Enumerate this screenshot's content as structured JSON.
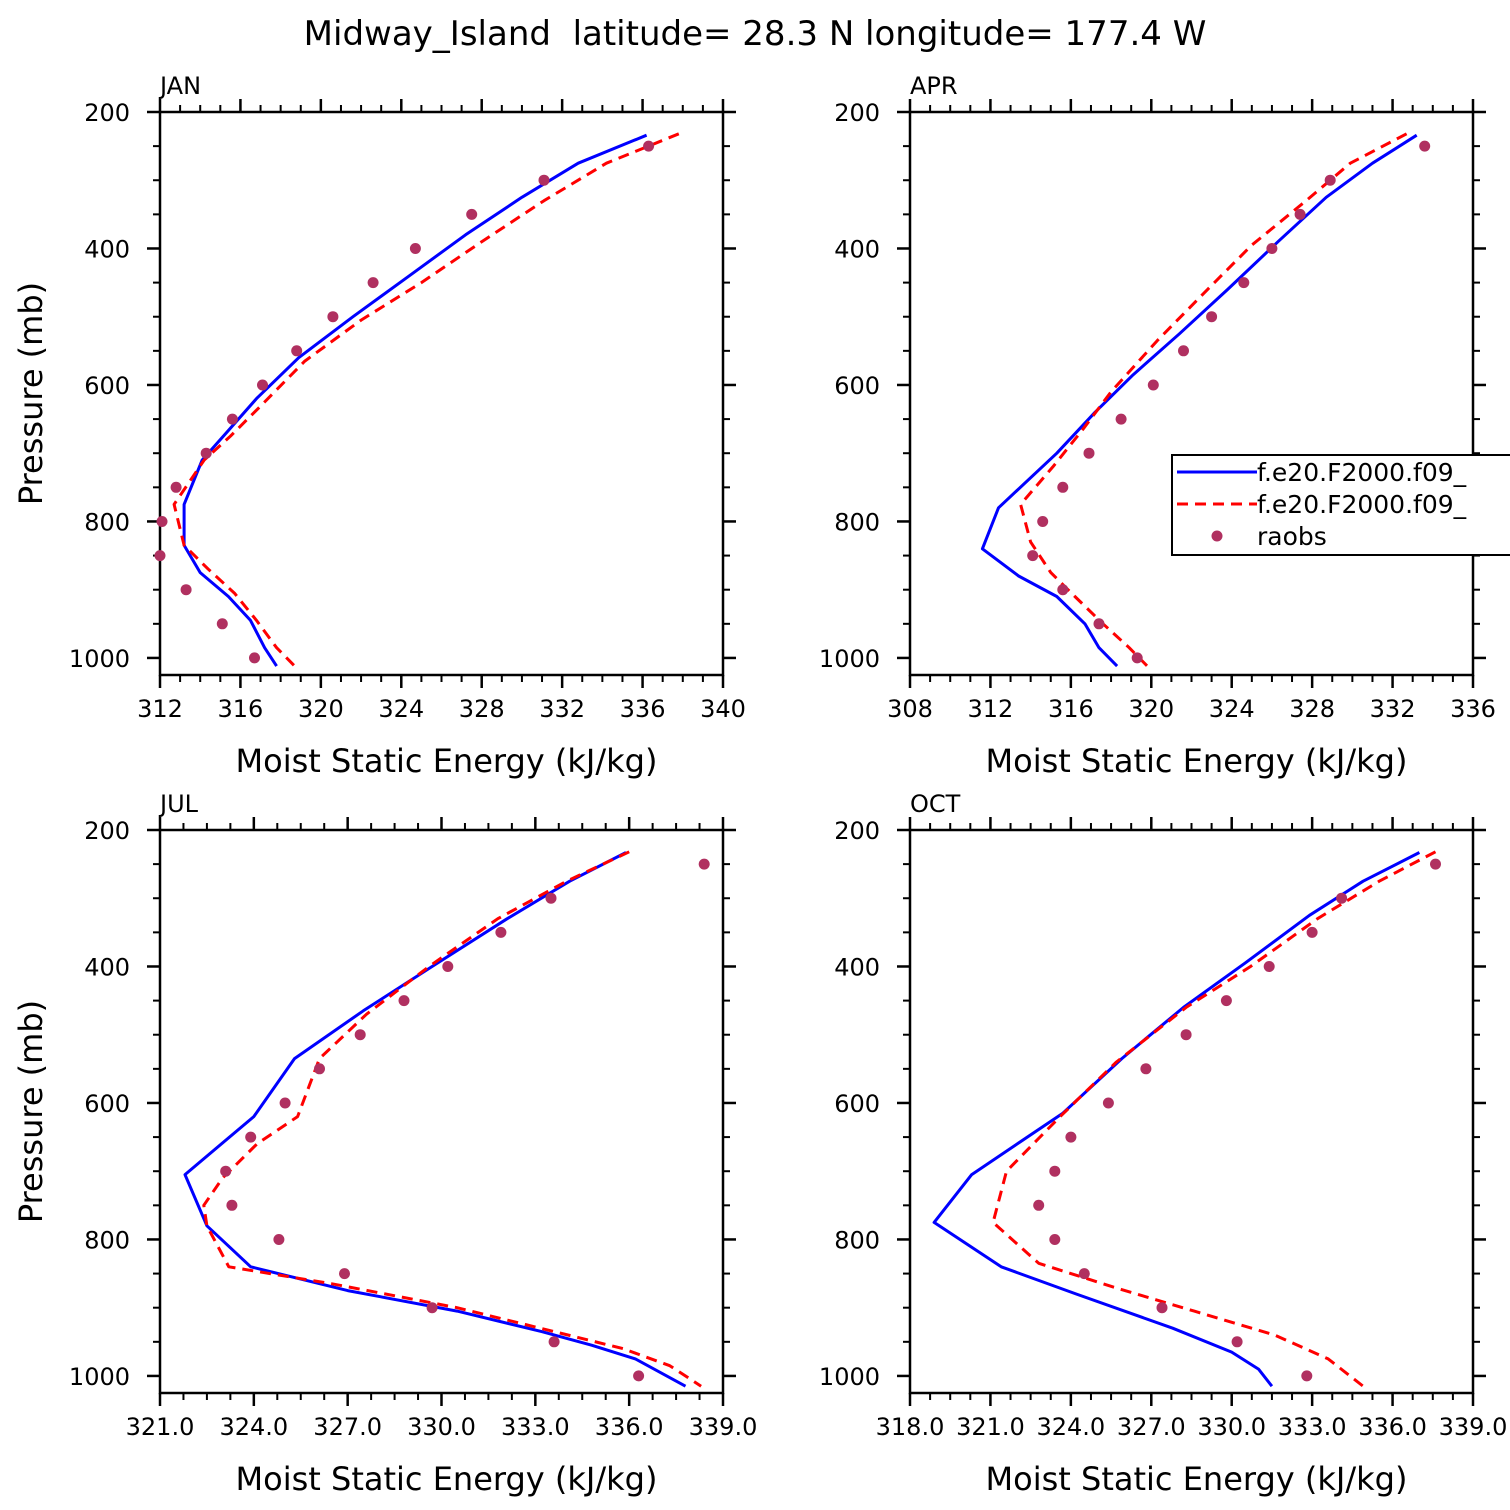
{
  "figure": {
    "title": "Midway_Island  latitude= 28.3 N longitude= 177.4 W"
  },
  "chart_data": [
    {
      "type": "line",
      "panel": "JAN",
      "title": "JAN",
      "xlabel": "Moist Static Energy (kJ/kg)",
      "ylabel": "Pressure (mb)",
      "xlim": [
        312,
        340
      ],
      "ylim": [
        1025,
        200
      ],
      "xticks": [
        312,
        316,
        320,
        324,
        328,
        332,
        336,
        340
      ],
      "xtick_labels": [
        "312",
        "316",
        "320",
        "324",
        "328",
        "332",
        "336",
        "340"
      ],
      "yticks": [
        200,
        400,
        600,
        800,
        1000
      ],
      "ytick_labels": [
        "200",
        "400",
        "600",
        "800",
        "1000"
      ],
      "show_ylabel": true,
      "series": [
        {
          "name": "f.e20.F2000.f09_",
          "style": "solid",
          "color": "#0000ff",
          "x": [
            336.2,
            332.8,
            330.0,
            327.2,
            324.4,
            321.6,
            318.9,
            316.8,
            315.3,
            314.1,
            313.2,
            313.2,
            314.0,
            315.4,
            316.5,
            317.2,
            317.8
          ],
          "y": [
            234,
            275,
            325,
            380,
            440,
            500,
            560,
            620,
            670,
            710,
            775,
            835,
            875,
            910,
            945,
            985,
            1012
          ]
        },
        {
          "name": "f.e20.F2000.f09_",
          "style": "dashed",
          "color": "#ff0000",
          "x": [
            337.8,
            334.2,
            331.1,
            328.0,
            325.0,
            322.0,
            319.2,
            317.2,
            315.5,
            314.2,
            312.7,
            313.2,
            314.4,
            315.7,
            316.8,
            317.8,
            318.7
          ],
          "y": [
            232,
            275,
            330,
            390,
            450,
            505,
            565,
            625,
            675,
            710,
            775,
            835,
            870,
            905,
            945,
            985,
            1012
          ]
        }
      ],
      "raobs": {
        "name": "raobs",
        "color": "#b03060",
        "x": [
          336.3,
          331.1,
          327.5,
          324.7,
          322.6,
          320.6,
          318.8,
          317.1,
          315.6,
          314.3,
          312.8,
          312.1,
          312.0,
          313.3,
          315.1,
          316.7
        ],
        "y": [
          250,
          300,
          350,
          400,
          450,
          500,
          550,
          600,
          650,
          700,
          750,
          800,
          850,
          900,
          950,
          1000
        ]
      }
    },
    {
      "type": "line",
      "panel": "APR",
      "title": "APR",
      "xlabel": "Moist Static Energy (kJ/kg)",
      "ylabel": "Pressure (mb)",
      "xlim": [
        308,
        336
      ],
      "ylim": [
        1025,
        200
      ],
      "xticks": [
        308,
        312,
        316,
        320,
        324,
        328,
        332,
        336
      ],
      "xtick_labels": [
        "308",
        "312",
        "316",
        "320",
        "324",
        "328",
        "332",
        "336"
      ],
      "yticks": [
        200,
        400,
        600,
        800,
        1000
      ],
      "ytick_labels": [
        "200",
        "400",
        "600",
        "800",
        "1000"
      ],
      "show_ylabel": false,
      "series": [
        {
          "name": "f.e20.F2000.f09_",
          "style": "solid",
          "color": "#0000ff",
          "x": [
            333.2,
            331.0,
            328.7,
            326.3,
            323.8,
            321.4,
            319.1,
            317.2,
            315.3,
            312.4,
            311.6,
            313.4,
            315.3,
            316.7,
            317.4,
            318.3
          ],
          "y": [
            234,
            275,
            325,
            390,
            460,
            525,
            585,
            640,
            700,
            780,
            840,
            880,
            910,
            950,
            985,
            1012
          ]
        },
        {
          "name": "f.e20.F2000.f09_",
          "style": "dashed",
          "color": "#ff0000",
          "x": [
            332.7,
            329.9,
            327.7,
            325.0,
            322.8,
            320.3,
            318.0,
            316.6,
            315.1,
            313.5,
            314.0,
            315.0,
            316.2,
            317.6,
            318.9,
            319.9
          ],
          "y": [
            232,
            275,
            330,
            395,
            460,
            535,
            610,
            665,
            720,
            775,
            830,
            875,
            910,
            950,
            985,
            1015
          ]
        }
      ],
      "raobs": {
        "name": "raobs",
        "color": "#b03060",
        "x": [
          333.6,
          328.9,
          327.4,
          326.0,
          324.6,
          323.0,
          321.6,
          320.1,
          318.5,
          316.9,
          315.6,
          314.6,
          314.1,
          315.6,
          317.4,
          319.3
        ],
        "y": [
          250,
          300,
          350,
          400,
          450,
          500,
          550,
          600,
          650,
          700,
          750,
          800,
          850,
          900,
          950,
          1000
        ]
      },
      "legend": {
        "location": "right",
        "entries": [
          {
            "label": "f.e20.F2000.f09_",
            "style": "solid",
            "color": "#0000ff"
          },
          {
            "label": "f.e20.F2000.f09_",
            "style": "dashed",
            "color": "#ff0000"
          },
          {
            "label": "raobs",
            "style": "marker",
            "color": "#b03060"
          }
        ]
      }
    },
    {
      "type": "line",
      "panel": "JUL",
      "title": "JUL",
      "xlabel": "Moist Static Energy (kJ/kg)",
      "ylabel": "Pressure (mb)",
      "xlim": [
        321,
        339
      ],
      "ylim": [
        1025,
        200
      ],
      "xticks": [
        321,
        324,
        327,
        330,
        333,
        336,
        339
      ],
      "xtick_labels": [
        "321.0",
        "324.0",
        "327.0",
        "330.0",
        "333.0",
        "336.0",
        "339.0"
      ],
      "yticks": [
        200,
        400,
        600,
        800,
        1000
      ],
      "ytick_labels": [
        "200",
        "400",
        "600",
        "800",
        "1000"
      ],
      "show_ylabel": true,
      "series": [
        {
          "name": "f.e20.F2000.f09_",
          "style": "solid",
          "color": "#0000ff",
          "x": [
            335.9,
            334.1,
            332.1,
            329.7,
            327.5,
            325.3,
            324.0,
            321.8,
            322.5,
            323.9,
            327.0,
            330.5,
            333.2,
            334.8,
            336.2,
            337.8
          ],
          "y": [
            233,
            275,
            330,
            400,
            465,
            535,
            620,
            705,
            780,
            840,
            875,
            905,
            935,
            955,
            975,
            1015
          ]
        },
        {
          "name": "f.e20.F2000.f09_",
          "style": "dashed",
          "color": "#ff0000",
          "x": [
            336.0,
            334.0,
            331.8,
            329.6,
            327.6,
            326.1,
            325.4,
            324.1,
            323.0,
            322.4,
            322.5,
            323.2,
            326.5,
            330.5,
            333.6,
            335.8,
            337.3,
            338.3
          ],
          "y": [
            232,
            275,
            330,
            400,
            470,
            535,
            620,
            660,
            710,
            750,
            780,
            840,
            865,
            900,
            935,
            960,
            985,
            1015
          ]
        }
      ],
      "raobs": {
        "name": "raobs",
        "color": "#b03060",
        "x": [
          338.4,
          333.5,
          331.9,
          330.2,
          328.8,
          327.4,
          326.1,
          325.0,
          323.9,
          323.1,
          323.3,
          324.8,
          326.9,
          329.7,
          333.6,
          336.3
        ],
        "y": [
          250,
          300,
          350,
          400,
          450,
          500,
          550,
          600,
          650,
          700,
          750,
          800,
          850,
          900,
          950,
          1000
        ]
      }
    },
    {
      "type": "line",
      "panel": "OCT",
      "title": "OCT",
      "xlabel": "Moist Static Energy (kJ/kg)",
      "ylabel": "Pressure (mb)",
      "xlim": [
        318,
        339
      ],
      "ylim": [
        1025,
        200
      ],
      "xticks": [
        318,
        321,
        324,
        327,
        330,
        333,
        336,
        339
      ],
      "xtick_labels": [
        "318.0",
        "321.0",
        "324.0",
        "327.0",
        "330.0",
        "333.0",
        "336.0",
        "339.0"
      ],
      "yticks": [
        200,
        400,
        600,
        800,
        1000
      ],
      "ytick_labels": [
        "200",
        "400",
        "600",
        "800",
        "1000"
      ],
      "show_ylabel": false,
      "series": [
        {
          "name": "f.e20.F2000.f09_",
          "style": "solid",
          "color": "#0000ff",
          "x": [
            337.0,
            334.9,
            332.9,
            330.5,
            328.2,
            325.9,
            323.7,
            320.3,
            318.9,
            321.4,
            324.2,
            327.8,
            330.0,
            331.0,
            331.5
          ],
          "y": [
            233,
            275,
            325,
            395,
            460,
            535,
            615,
            705,
            775,
            840,
            880,
            930,
            965,
            990,
            1015
          ]
        },
        {
          "name": "f.e20.F2000.f09_",
          "style": "dashed",
          "color": "#ff0000",
          "x": [
            337.6,
            335.5,
            333.2,
            330.7,
            328.3,
            325.7,
            323.6,
            321.6,
            321.1,
            322.8,
            325.6,
            328.6,
            331.6,
            333.6,
            334.9
          ],
          "y": [
            232,
            275,
            330,
            400,
            460,
            540,
            620,
            700,
            775,
            835,
            870,
            905,
            940,
            975,
            1015
          ]
        }
      ],
      "raobs": {
        "name": "raobs",
        "color": "#b03060",
        "x": [
          337.6,
          334.1,
          333.0,
          331.4,
          329.8,
          328.3,
          326.8,
          325.4,
          324.0,
          323.4,
          322.8,
          323.4,
          324.5,
          327.4,
          330.2,
          332.8
        ],
        "y": [
          250,
          300,
          350,
          400,
          450,
          500,
          550,
          600,
          650,
          700,
          750,
          800,
          850,
          900,
          950,
          1000
        ]
      }
    }
  ]
}
